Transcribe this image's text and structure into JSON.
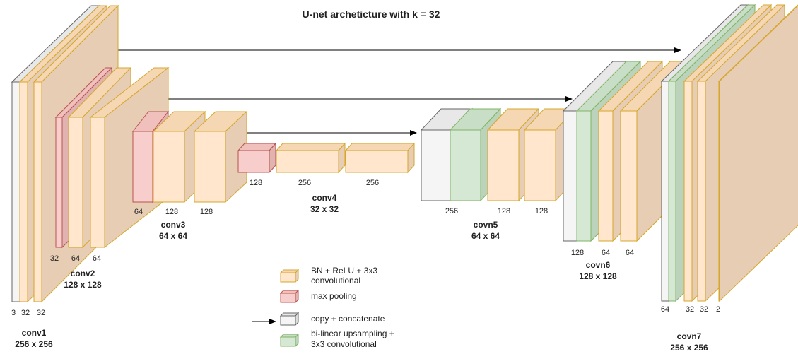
{
  "title": "U-net archeticture with k = 32",
  "colors": {
    "conv": {
      "front": "#ffe6cc",
      "side": "#e6cdb3",
      "top": "#f5d7b4",
      "stroke": "#d6a72c"
    },
    "pool": {
      "front": "#f8cecc",
      "side": "#e0b3b1",
      "top": "#f0c0bd",
      "stroke": "#b85450"
    },
    "copy": {
      "front": "#f5f5f5",
      "side": "#dcdcdc",
      "top": "#e8e8e8",
      "stroke": "#666666"
    },
    "up": {
      "front": "#d5e8d4",
      "side": "#bcd3bb",
      "top": "#c8dec7",
      "stroke": "#82b366"
    }
  },
  "stages": [
    {
      "id": "conv1",
      "name": "conv1",
      "size": "256 x 256",
      "channels": [
        "3",
        "32",
        "32"
      ]
    },
    {
      "id": "conv2",
      "name": "conv2",
      "size": "128 x 128",
      "channels": [
        "32",
        "64",
        "64"
      ]
    },
    {
      "id": "conv3",
      "name": "conv3",
      "size": "64 x 64",
      "channels": [
        "64",
        "128",
        "128"
      ]
    },
    {
      "id": "conv4",
      "name": "conv4",
      "size": "32 x 32",
      "channels": [
        "128",
        "256",
        "256"
      ]
    },
    {
      "id": "covn5",
      "name": "covn5",
      "size": "64 x 64",
      "channels": [
        "256",
        "128",
        "128"
      ]
    },
    {
      "id": "covn6",
      "name": "covn6",
      "size": "128 x 128",
      "channels": [
        "128",
        "64",
        "64"
      ]
    },
    {
      "id": "covn7",
      "name": "covn7",
      "size": "256 x 256",
      "channels": [
        "64",
        "32",
        "32",
        "2"
      ]
    }
  ],
  "legend": [
    {
      "type": "conv",
      "lines": [
        "BN + ReLU + 3x3",
        "convolutional"
      ]
    },
    {
      "type": "pool",
      "lines": [
        "max pooling"
      ]
    },
    {
      "type": "copy",
      "lines": [
        "copy + concatenate"
      ]
    },
    {
      "type": "up",
      "lines": [
        "bi-linear upsampling +",
        "3x3 convolutional"
      ]
    }
  ]
}
